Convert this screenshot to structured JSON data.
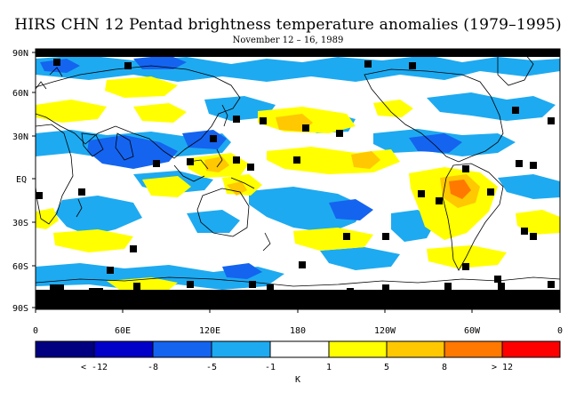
{
  "title": "HIRS CHN 12 Pentad brightness temperature anomalies (1979–1995)",
  "subtitle": "November 12 – 16, 1989",
  "map": {
    "lat_labels": [
      "90N",
      "60N",
      "30N",
      "EQ",
      "30S",
      "60S",
      "90S"
    ],
    "lon_labels": [
      "0",
      "60E",
      "120E",
      "180",
      "120W",
      "60W",
      "0"
    ]
  },
  "colorbar": {
    "colors": [
      "#000080",
      "#0000c8",
      "#1464f0",
      "#1eaaf0",
      "#ffffff",
      "#ffff00",
      "#ffc800",
      "#ff7800",
      "#ff0000"
    ],
    "labels": [
      "< -12",
      "-8",
      "-5",
      "-1",
      "1",
      "5",
      "8",
      "> 12"
    ],
    "unit": "K"
  }
}
